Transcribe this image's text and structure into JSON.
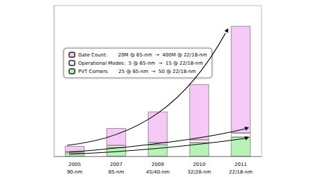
{
  "chart_data": {
    "type": "bar",
    "stacked": true,
    "tick_labels": "x",
    "grid": false,
    "legend": "upper left",
    "categories": [
      "2005\n90-nm",
      "2007\n65-nm",
      "2009\n45/40-nm",
      "2010\n32/28-nm",
      "2011\n22/18-nm"
    ],
    "ylim": [
      0,
      220
    ],
    "series": [
      {
        "name": "PVT Corners       25 @ 65-nm  →  50 @ 22/18-nm",
        "color": "#b9f2b9",
        "values": [
          5,
          13,
          17,
          20,
          28
        ]
      },
      {
        "name": "Operational Modes:  5 @ 65-nm  →  15 @ 22/18-nm",
        "color": "#fbfbfb",
        "values": [
          2,
          3,
          3,
          4,
          6
        ]
      },
      {
        "name": "Gate Count:       20M @ 65-nm  →  400M @ 22/18-nm",
        "color": "#f6c8f6",
        "values": [
          8,
          25,
          45,
          81,
          156
        ]
      }
    ]
  }
}
